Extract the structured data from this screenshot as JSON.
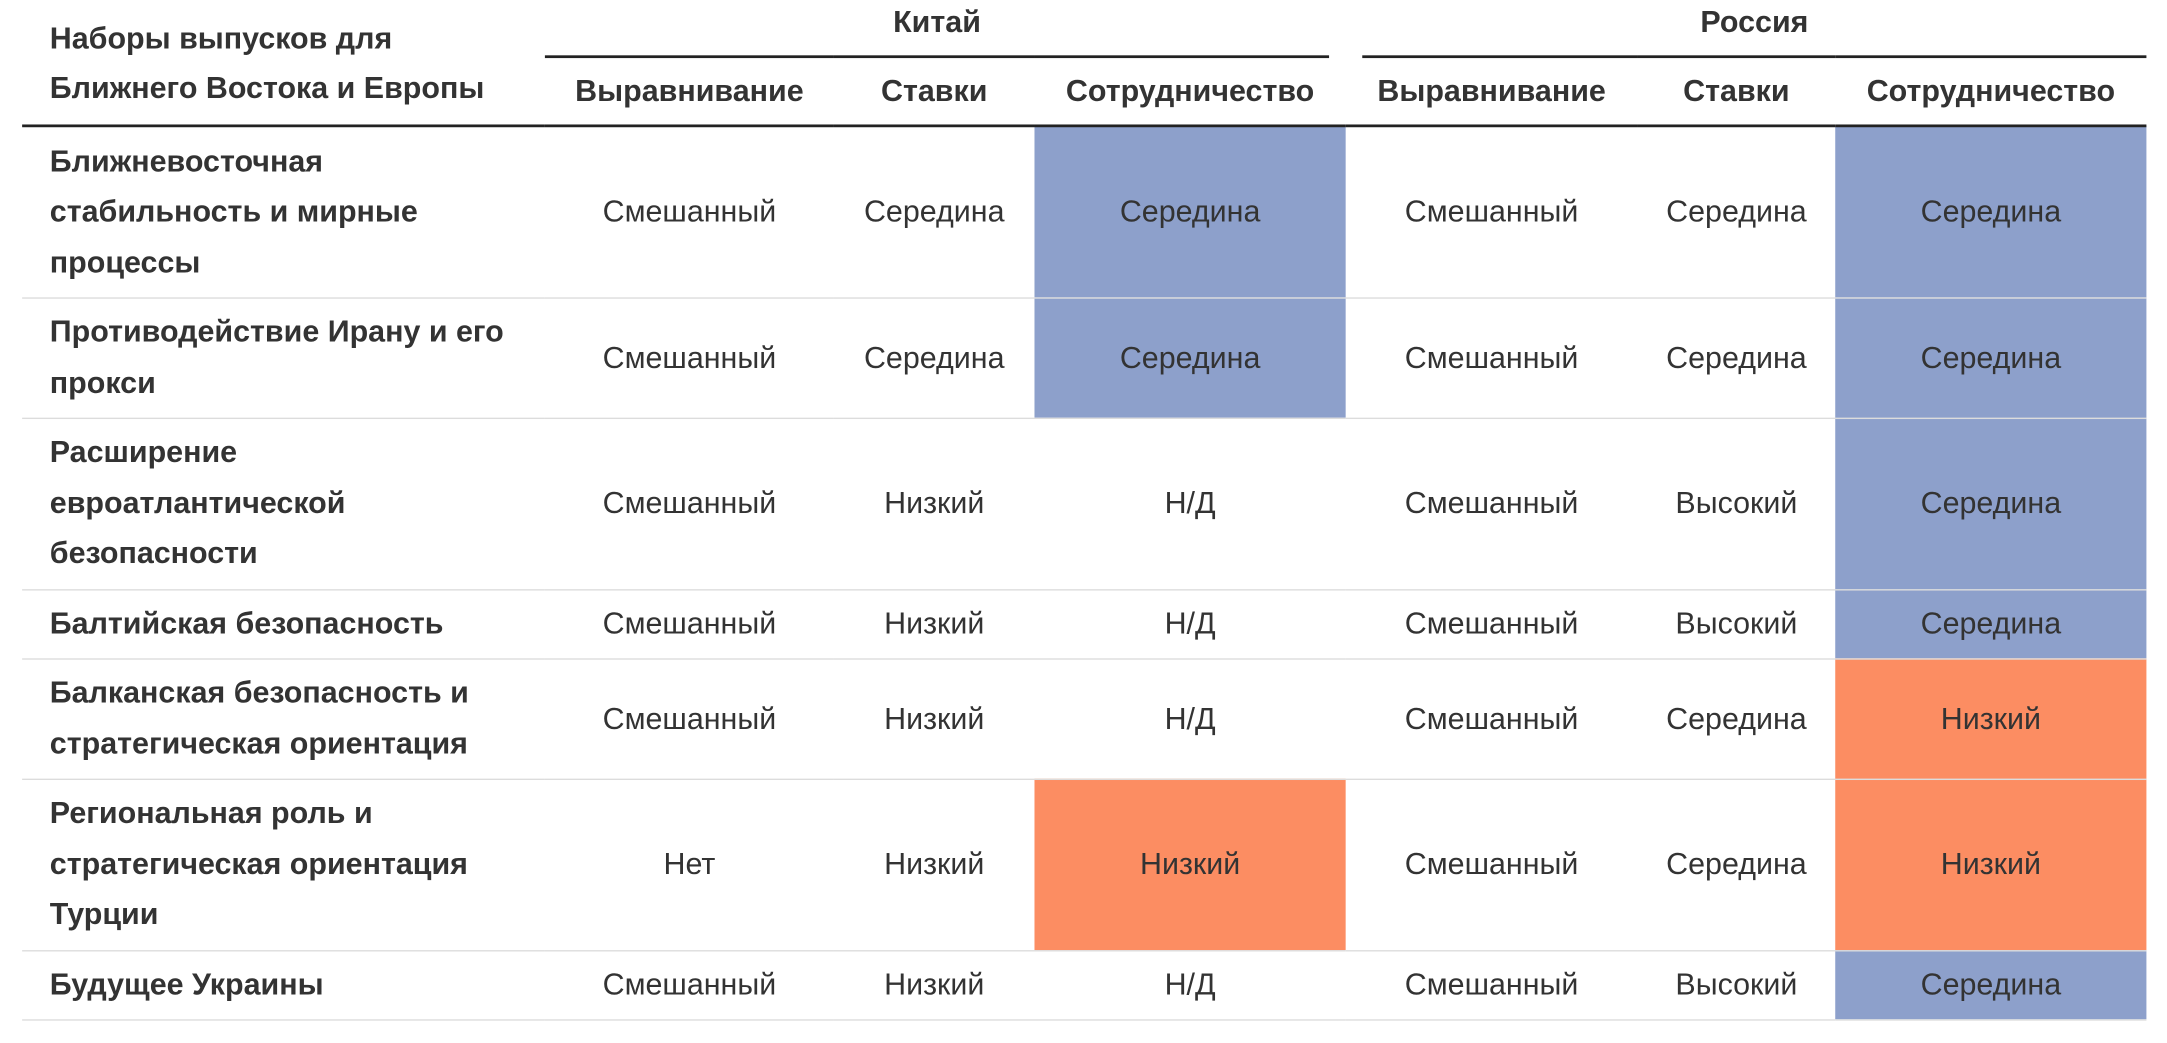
{
  "table": {
    "corner_label": "Наборы выпусков для Ближнего Востока и Европы",
    "groups": [
      {
        "label": "Китай",
        "colspan": 3
      },
      {
        "label": "Россия",
        "colspan": 3
      }
    ],
    "subheaders": [
      "Выравнивание",
      "Ставки",
      "Сотрудничество",
      "Выравнивание",
      "Ставки",
      "Сотрудничество"
    ],
    "rows": [
      {
        "label": "Ближневосточная стабильность и мирные процессы",
        "cells": [
          "Смешанный",
          "Середина",
          "Середина",
          "Смешанный",
          "Середина",
          "Середина"
        ],
        "highlight": [
          "",
          "",
          "blue",
          "",
          "",
          "blue"
        ]
      },
      {
        "label": "Противодействие Ирану и его прокси",
        "cells": [
          "Смешанный",
          "Середина",
          "Середина",
          "Смешанный",
          "Середина",
          "Середина"
        ],
        "highlight": [
          "",
          "",
          "blue",
          "",
          "",
          "blue"
        ]
      },
      {
        "label": "Расширение евроатлантической безопасности",
        "cells": [
          "Смешанный",
          "Низкий",
          "Н/Д",
          "Смешанный",
          "Высокий",
          "Середина"
        ],
        "highlight": [
          "",
          "",
          "",
          "",
          "",
          "blue"
        ]
      },
      {
        "label": "Балтийская безопасность",
        "cells": [
          "Смешанный",
          "Низкий",
          "Н/Д",
          "Смешанный",
          "Высокий",
          "Середина"
        ],
        "highlight": [
          "",
          "",
          "",
          "",
          "",
          "blue"
        ]
      },
      {
        "label": "Балканская безопасность и стратегическая ориентация",
        "cells": [
          "Смешанный",
          "Низкий",
          "Н/Д",
          "Смешанный",
          "Середина",
          "Низкий"
        ],
        "highlight": [
          "",
          "",
          "",
          "",
          "",
          "orange"
        ]
      },
      {
        "label": "Региональная роль и стратегическая ориентация Турции",
        "cells": [
          "Нет",
          "Низкий",
          "Низкий",
          "Смешанный",
          "Середина",
          "Низкий"
        ],
        "highlight": [
          "",
          "",
          "orange",
          "",
          "",
          "orange"
        ]
      },
      {
        "label": "Будущее Украины",
        "cells": [
          "Смешанный",
          "Низкий",
          "Н/Д",
          "Смешанный",
          "Высокий",
          "Середина"
        ],
        "highlight": [
          "",
          "",
          "",
          "",
          "",
          "blue"
        ]
      }
    ]
  },
  "colors": {
    "blue": "#8da0cb",
    "orange": "#fc8d62",
    "rule": "#222222",
    "row_border": "#dcdcdc"
  }
}
